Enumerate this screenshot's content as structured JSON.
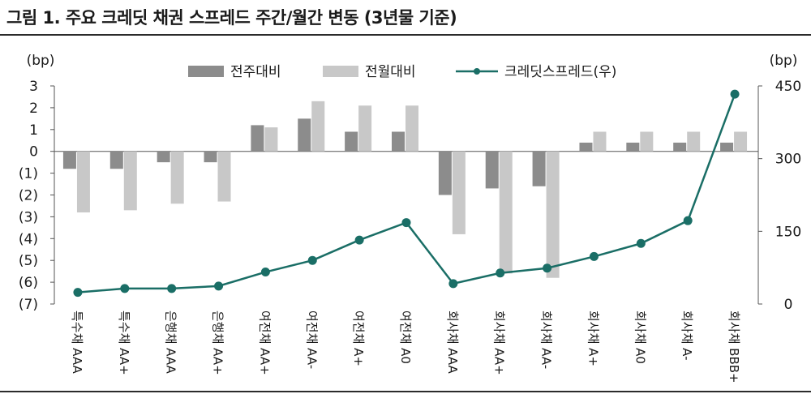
{
  "title": "그림 1. 주요 크레딧 채권 스프레드 주간/월간 변동 (3년물 기준)",
  "colors": {
    "weekly": "#8c8c8c",
    "monthly": "#c8c8c8",
    "spread": "#1a6e66"
  },
  "chart_data": {
    "type": "bar",
    "categories": [
      "특수채 AAA",
      "특수채 AA+",
      "은행채 AAA",
      "은행채 AA+",
      "여전채 AA+",
      "여전채 AA-",
      "여전채 A+",
      "여전채 A0",
      "회사채 AAA",
      "회사채 AA+",
      "회사채 AA-",
      "회사채 A+",
      "회사채 A0",
      "회사채 A-",
      "회사채 BBB+"
    ],
    "series": [
      {
        "name": "전주대비",
        "type": "bar",
        "axis": "left",
        "values": [
          -0.8,
          -0.8,
          -0.5,
          -0.5,
          1.2,
          1.5,
          0.9,
          0.9,
          -2.0,
          -1.7,
          -1.6,
          0.4,
          0.4,
          0.4,
          0.4
        ]
      },
      {
        "name": "전월대비",
        "type": "bar",
        "axis": "left",
        "values": [
          -2.8,
          -2.7,
          -2.4,
          -2.3,
          1.1,
          2.3,
          2.1,
          2.1,
          -3.8,
          -5.6,
          -5.8,
          0.9,
          0.9,
          0.9,
          0.9
        ]
      },
      {
        "name": "크레딧스프레드(우)",
        "type": "line",
        "axis": "right",
        "values": [
          24,
          32,
          32,
          37,
          66,
          90,
          132,
          168,
          42,
          64,
          74,
          98,
          125,
          172,
          433
        ]
      }
    ],
    "left_axis": {
      "label": "(bp)",
      "ylim": [
        -7,
        3
      ],
      "ticks": [
        3,
        2,
        1,
        0,
        -1,
        -2,
        -3,
        -4,
        -5,
        -6,
        -7
      ],
      "tick_labels": [
        "3",
        "2",
        "1",
        "0",
        "(1)",
        "(2)",
        "(3)",
        "(4)",
        "(5)",
        "(6)",
        "(7)"
      ]
    },
    "right_axis": {
      "label": "(bp)",
      "ylim": [
        0,
        450
      ],
      "ticks": [
        450,
        300,
        150,
        0
      ],
      "tick_labels": [
        "450",
        "300",
        "150",
        "0"
      ]
    },
    "legend": "top-center",
    "grid": false
  }
}
